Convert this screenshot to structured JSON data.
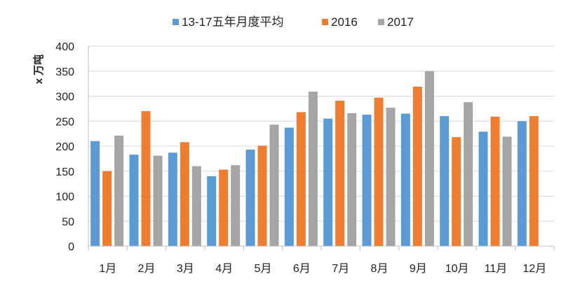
{
  "chart_data": {
    "type": "bar",
    "title": "",
    "xlabel": "",
    "ylabel": "x 万吨",
    "ylim": [
      0,
      400
    ],
    "yticks": [
      0,
      50,
      100,
      150,
      200,
      250,
      300,
      350,
      400
    ],
    "grid": true,
    "legend_position": "top",
    "categories": [
      "1月",
      "2月",
      "3月",
      "4月",
      "5月",
      "6月",
      "7月",
      "8月",
      "9月",
      "10月",
      "11月",
      "12月"
    ],
    "series": [
      {
        "name": "13-17五年月度平均",
        "color": "#5B9BD5",
        "values": [
          210,
          183,
          187,
          140,
          193,
          237,
          255,
          263,
          265,
          260,
          229,
          250
        ]
      },
      {
        "name": "2016",
        "color": "#ED7D31",
        "values": [
          150,
          270,
          208,
          153,
          201,
          268,
          291,
          297,
          319,
          218,
          259,
          260
        ]
      },
      {
        "name": "2017",
        "color": "#A5A5A5",
        "values": [
          221,
          181,
          160,
          162,
          243,
          309,
          266,
          277,
          350,
          288,
          219,
          null
        ]
      }
    ]
  }
}
